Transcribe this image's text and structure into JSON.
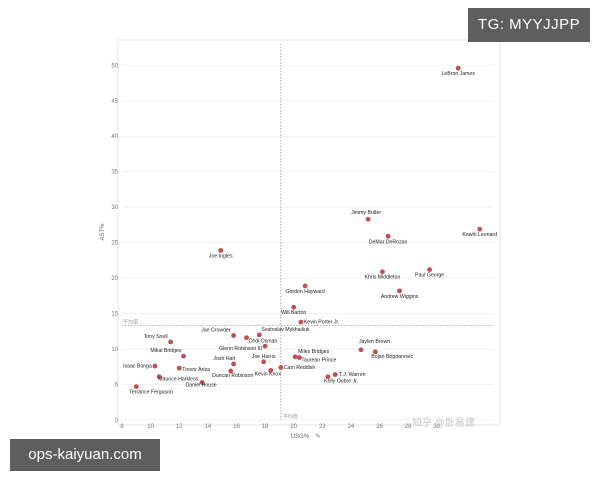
{
  "overlays": {
    "top_right_tag": "TG: MYYJJPP",
    "bottom_left_site": "ops-kaiyuan.com",
    "watermark": "知乎 @卧易建"
  },
  "colors": {
    "point": "#c0504d",
    "grid": "#eeeeee",
    "avg_line": "#999999",
    "overlay_bg": "#5e5e5e"
  },
  "chart_data": {
    "type": "scatter",
    "title": "",
    "xlabel": "USG%",
    "ylabel": "AST%",
    "xlim": [
      8,
      34
    ],
    "ylim": [
      0,
      53
    ],
    "x_ticks": [
      8,
      10,
      12,
      14,
      16,
      18,
      20,
      22,
      24,
      26,
      28,
      30
    ],
    "y_ticks": [
      0,
      5,
      10,
      15,
      20,
      25,
      30,
      35,
      40,
      45,
      50
    ],
    "reference_lines": {
      "x_avg": 19.1,
      "y_avg": 13.3,
      "x_avg_label": "平均值",
      "y_avg_label": "平均值"
    },
    "points": [
      {
        "name": "LeBron James",
        "x": 31.5,
        "y": 49.6
      },
      {
        "name": "Kawhi Leonard",
        "x": 33.0,
        "y": 26.9
      },
      {
        "name": "Jimmy Butler",
        "x": 25.2,
        "y": 28.3
      },
      {
        "name": "DeMar DeRozan",
        "x": 26.6,
        "y": 25.9
      },
      {
        "name": "Paul George",
        "x": 29.5,
        "y": 21.2
      },
      {
        "name": "Khris Middleton",
        "x": 26.2,
        "y": 20.9
      },
      {
        "name": "Andrew Wiggins",
        "x": 27.4,
        "y": 18.2
      },
      {
        "name": "Joe Ingles",
        "x": 14.9,
        "y": 23.9
      },
      {
        "name": "Gordon Hayward",
        "x": 20.8,
        "y": 18.9
      },
      {
        "name": "Will Barton",
        "x": 20.0,
        "y": 15.9
      },
      {
        "name": "Kevin Porter Jr.",
        "x": 20.5,
        "y": 13.8
      },
      {
        "name": "Tony Snell",
        "x": 11.4,
        "y": 11.0
      },
      {
        "name": "Jae Crowder",
        "x": 15.8,
        "y": 11.9
      },
      {
        "name": "Svatoslav Mykhailiuk",
        "x": 17.6,
        "y": 12.0
      },
      {
        "name": "Cedi Osman",
        "x": 16.7,
        "y": 11.6
      },
      {
        "name": "Glenn Robinson III",
        "x": 18.0,
        "y": 10.4
      },
      {
        "name": "Mikal Bridges",
        "x": 12.3,
        "y": 9.0
      },
      {
        "name": "Isaac Bonga",
        "x": 10.3,
        "y": 7.6
      },
      {
        "name": "Josh Hart",
        "x": 15.8,
        "y": 7.9
      },
      {
        "name": "Joe Harris",
        "x": 17.9,
        "y": 8.2
      },
      {
        "name": "Trevor Ariza",
        "x": 12.0,
        "y": 7.3
      },
      {
        "name": "Maurice Harkless",
        "x": 10.6,
        "y": 6.1
      },
      {
        "name": "Daniel House",
        "x": 13.6,
        "y": 5.3
      },
      {
        "name": "Duncan Robinson",
        "x": 15.6,
        "y": 6.9
      },
      {
        "name": "Terrance Ferguson",
        "x": 9.0,
        "y": 4.7
      },
      {
        "name": "Cam Reddish",
        "x": 19.1,
        "y": 7.4
      },
      {
        "name": "Kevin Knox",
        "x": 18.4,
        "y": 7.0
      },
      {
        "name": "Miles Bridges",
        "x": 20.1,
        "y": 8.9
      },
      {
        "name": "Taurean Prince",
        "x": 20.4,
        "y": 8.8
      },
      {
        "name": "Jaylen Brown",
        "x": 24.7,
        "y": 9.9
      },
      {
        "name": "Bojan Bogdanovic",
        "x": 25.7,
        "y": 9.6
      },
      {
        "name": "T.J. Warren",
        "x": 22.9,
        "y": 6.4
      },
      {
        "name": "Kelly Oubre Jr.",
        "x": 22.4,
        "y": 6.1
      }
    ]
  }
}
